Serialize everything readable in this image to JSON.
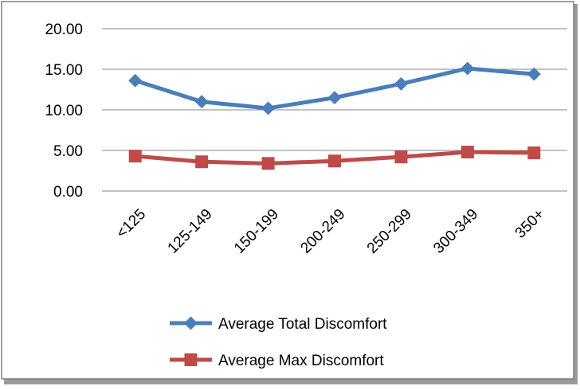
{
  "chart_data": {
    "type": "line",
    "title": "",
    "xlabel": "",
    "ylabel": "",
    "categories": [
      "<125",
      "125-149",
      "150-199",
      "200-249",
      "250-299",
      "300-349",
      "350+"
    ],
    "y_ticks": [
      "0.00",
      "5.00",
      "10.00",
      "15.00",
      "20.00"
    ],
    "ylim": [
      0,
      20
    ],
    "grid": "horizontal",
    "legend_position": "bottom",
    "series": [
      {
        "name": "Average Total Discomfort",
        "values": [
          13.6,
          11.0,
          10.2,
          11.5,
          13.2,
          15.1,
          14.4
        ],
        "color": "#4a7ebb",
        "marker": "diamond"
      },
      {
        "name": "Average Max Discomfort",
        "values": [
          4.3,
          3.6,
          3.4,
          3.7,
          4.2,
          4.8,
          4.7
        ],
        "color": "#be4b48",
        "marker": "square"
      }
    ]
  }
}
